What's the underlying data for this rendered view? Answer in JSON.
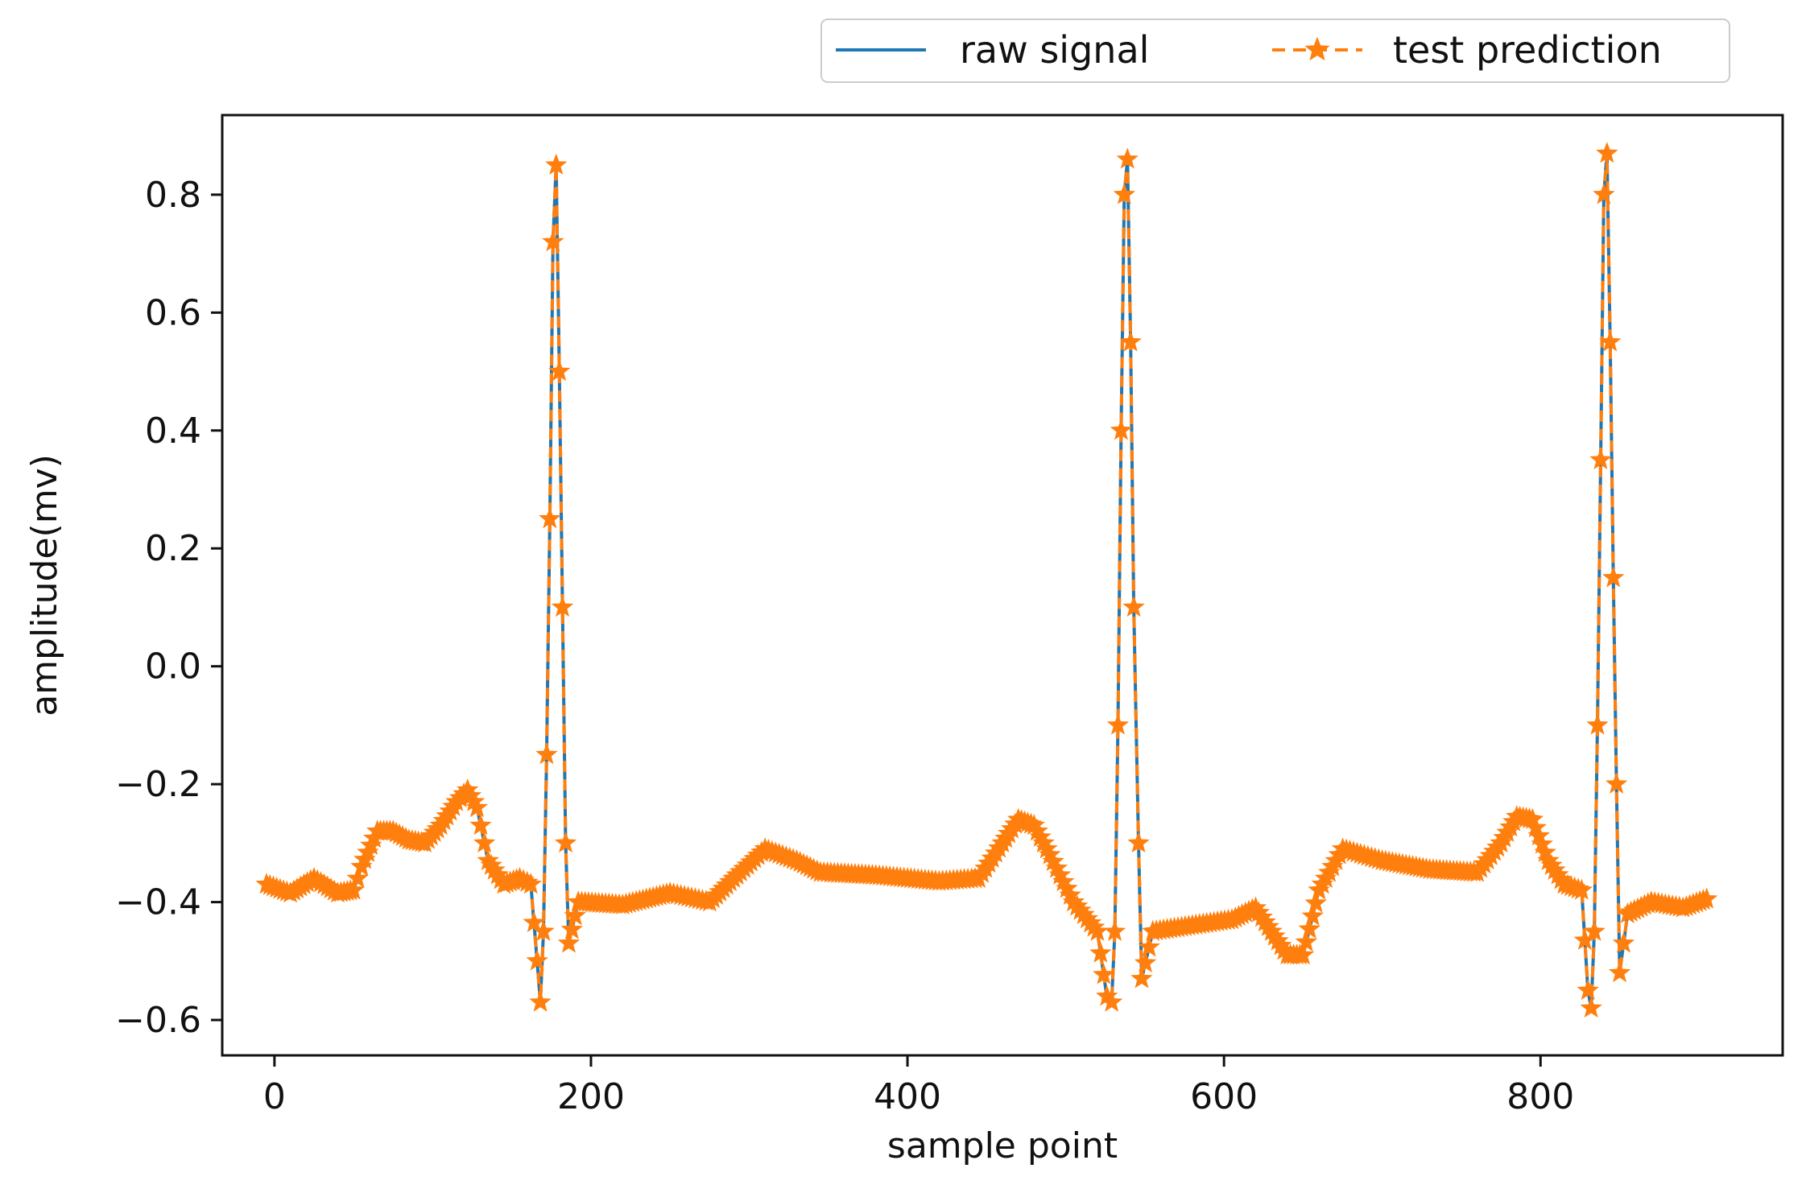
{
  "chart_data": {
    "type": "line",
    "title": "",
    "xlabel": "sample point",
    "ylabel": "amplitude(mv)",
    "xlim": [
      -33,
      953
    ],
    "ylim": [
      -0.66,
      0.935
    ],
    "x_ticks": [
      0,
      200,
      400,
      600,
      800
    ],
    "x_tick_labels": [
      "0",
      "200",
      "400",
      "600",
      "800"
    ],
    "y_ticks": [
      -0.6,
      -0.4,
      -0.2,
      0.0,
      0.2,
      0.4,
      0.6,
      0.8
    ],
    "y_tick_labels": [
      "−0.6",
      "−0.4",
      "−0.2",
      "0.0",
      "0.2",
      "0.4",
      "0.6",
      "0.8"
    ],
    "grid": false,
    "legend_position": "top-right, outside plot area",
    "series": [
      {
        "name": "raw signal",
        "color": "#1f77b4",
        "line_style": "solid",
        "marker": "none",
        "points": [
          [
            -5,
            -0.37
          ],
          [
            10,
            -0.385
          ],
          [
            25,
            -0.36
          ],
          [
            40,
            -0.385
          ],
          [
            50,
            -0.38
          ],
          [
            55,
            -0.34
          ],
          [
            65,
            -0.28
          ],
          [
            75,
            -0.28
          ],
          [
            85,
            -0.295
          ],
          [
            95,
            -0.3
          ],
          [
            105,
            -0.27
          ],
          [
            115,
            -0.23
          ],
          [
            122,
            -0.21
          ],
          [
            128,
            -0.24
          ],
          [
            135,
            -0.33
          ],
          [
            145,
            -0.37
          ],
          [
            155,
            -0.36
          ],
          [
            162,
            -0.37
          ],
          [
            166,
            -0.5
          ],
          [
            168,
            -0.57
          ],
          [
            170,
            -0.45
          ],
          [
            172,
            -0.15
          ],
          [
            174,
            0.25
          ],
          [
            176,
            0.72
          ],
          [
            178,
            0.85
          ],
          [
            180,
            0.5
          ],
          [
            182,
            0.1
          ],
          [
            184,
            -0.3
          ],
          [
            186,
            -0.47
          ],
          [
            192,
            -0.4
          ],
          [
            220,
            -0.405
          ],
          [
            250,
            -0.385
          ],
          [
            275,
            -0.4
          ],
          [
            290,
            -0.36
          ],
          [
            310,
            -0.31
          ],
          [
            330,
            -0.33
          ],
          [
            345,
            -0.35
          ],
          [
            380,
            -0.355
          ],
          [
            420,
            -0.365
          ],
          [
            445,
            -0.36
          ],
          [
            460,
            -0.3
          ],
          [
            470,
            -0.26
          ],
          [
            480,
            -0.27
          ],
          [
            490,
            -0.32
          ],
          [
            505,
            -0.4
          ],
          [
            520,
            -0.45
          ],
          [
            526,
            -0.56
          ],
          [
            529,
            -0.57
          ],
          [
            531,
            -0.45
          ],
          [
            533,
            -0.1
          ],
          [
            535,
            0.4
          ],
          [
            537,
            0.8
          ],
          [
            539,
            0.86
          ],
          [
            541,
            0.55
          ],
          [
            543,
            0.1
          ],
          [
            546,
            -0.3
          ],
          [
            548,
            -0.53
          ],
          [
            555,
            -0.45
          ],
          [
            580,
            -0.44
          ],
          [
            605,
            -0.43
          ],
          [
            620,
            -0.41
          ],
          [
            630,
            -0.45
          ],
          [
            640,
            -0.49
          ],
          [
            650,
            -0.49
          ],
          [
            660,
            -0.38
          ],
          [
            675,
            -0.31
          ],
          [
            700,
            -0.33
          ],
          [
            730,
            -0.345
          ],
          [
            760,
            -0.35
          ],
          [
            775,
            -0.3
          ],
          [
            785,
            -0.255
          ],
          [
            795,
            -0.26
          ],
          [
            805,
            -0.33
          ],
          [
            815,
            -0.37
          ],
          [
            826,
            -0.38
          ],
          [
            830,
            -0.55
          ],
          [
            832,
            -0.58
          ],
          [
            834,
            -0.45
          ],
          [
            836,
            -0.1
          ],
          [
            838,
            0.35
          ],
          [
            840,
            0.8
          ],
          [
            842,
            0.87
          ],
          [
            844,
            0.55
          ],
          [
            846,
            0.15
          ],
          [
            848,
            -0.2
          ],
          [
            850,
            -0.52
          ],
          [
            855,
            -0.42
          ],
          [
            870,
            -0.4
          ],
          [
            890,
            -0.41
          ],
          [
            905,
            -0.395
          ]
        ]
      },
      {
        "name": "test prediction",
        "color": "#ff7f0e",
        "line_style": "dashed",
        "marker": "star",
        "points": [
          [
            -5,
            -0.37
          ],
          [
            10,
            -0.385
          ],
          [
            25,
            -0.36
          ],
          [
            40,
            -0.385
          ],
          [
            50,
            -0.38
          ],
          [
            55,
            -0.34
          ],
          [
            65,
            -0.28
          ],
          [
            75,
            -0.28
          ],
          [
            85,
            -0.295
          ],
          [
            95,
            -0.3
          ],
          [
            105,
            -0.27
          ],
          [
            115,
            -0.23
          ],
          [
            122,
            -0.21
          ],
          [
            128,
            -0.24
          ],
          [
            135,
            -0.33
          ],
          [
            145,
            -0.37
          ],
          [
            155,
            -0.36
          ],
          [
            162,
            -0.37
          ],
          [
            166,
            -0.5
          ],
          [
            168,
            -0.57
          ],
          [
            170,
            -0.45
          ],
          [
            172,
            -0.15
          ],
          [
            174,
            0.25
          ],
          [
            176,
            0.72
          ],
          [
            178,
            0.85
          ],
          [
            180,
            0.5
          ],
          [
            182,
            0.1
          ],
          [
            184,
            -0.3
          ],
          [
            186,
            -0.47
          ],
          [
            192,
            -0.4
          ],
          [
            220,
            -0.405
          ],
          [
            250,
            -0.385
          ],
          [
            275,
            -0.4
          ],
          [
            290,
            -0.36
          ],
          [
            310,
            -0.31
          ],
          [
            330,
            -0.33
          ],
          [
            345,
            -0.35
          ],
          [
            380,
            -0.355
          ],
          [
            420,
            -0.365
          ],
          [
            445,
            -0.36
          ],
          [
            460,
            -0.3
          ],
          [
            470,
            -0.26
          ],
          [
            480,
            -0.27
          ],
          [
            490,
            -0.32
          ],
          [
            505,
            -0.4
          ],
          [
            520,
            -0.45
          ],
          [
            526,
            -0.56
          ],
          [
            529,
            -0.57
          ],
          [
            531,
            -0.45
          ],
          [
            533,
            -0.1
          ],
          [
            535,
            0.4
          ],
          [
            537,
            0.8
          ],
          [
            539,
            0.86
          ],
          [
            541,
            0.55
          ],
          [
            543,
            0.1
          ],
          [
            546,
            -0.3
          ],
          [
            548,
            -0.53
          ],
          [
            555,
            -0.45
          ],
          [
            580,
            -0.44
          ],
          [
            605,
            -0.43
          ],
          [
            620,
            -0.41
          ],
          [
            630,
            -0.45
          ],
          [
            640,
            -0.49
          ],
          [
            650,
            -0.49
          ],
          [
            660,
            -0.38
          ],
          [
            675,
            -0.31
          ],
          [
            700,
            -0.33
          ],
          [
            730,
            -0.345
          ],
          [
            760,
            -0.35
          ],
          [
            775,
            -0.3
          ],
          [
            785,
            -0.255
          ],
          [
            795,
            -0.26
          ],
          [
            805,
            -0.33
          ],
          [
            815,
            -0.37
          ],
          [
            826,
            -0.38
          ],
          [
            830,
            -0.55
          ],
          [
            832,
            -0.58
          ],
          [
            834,
            -0.45
          ],
          [
            836,
            -0.1
          ],
          [
            838,
            0.35
          ],
          [
            840,
            0.8
          ],
          [
            842,
            0.87
          ],
          [
            844,
            0.55
          ],
          [
            846,
            0.15
          ],
          [
            848,
            -0.2
          ],
          [
            850,
            -0.52
          ],
          [
            855,
            -0.42
          ],
          [
            870,
            -0.4
          ],
          [
            890,
            -0.41
          ],
          [
            905,
            -0.395
          ]
        ]
      }
    ]
  }
}
